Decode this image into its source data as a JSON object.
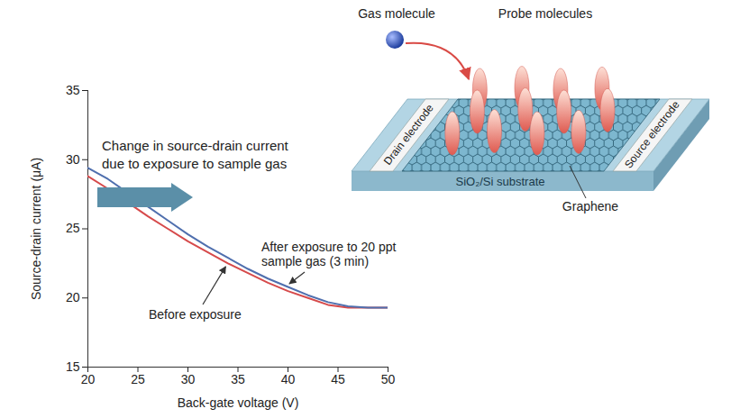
{
  "chart_data": {
    "type": "line",
    "x_label": "Back-gate voltage (V)",
    "y_label": "Source-drain current (μA)",
    "x": [
      20,
      22,
      24,
      26,
      28,
      30,
      32,
      34,
      36,
      38,
      40,
      42,
      44,
      46,
      48,
      50
    ],
    "series": [
      {
        "name": "Before exposure",
        "color": "#d64a4b",
        "values": [
          28.8,
          27.9,
          26.9,
          25.9,
          25.0,
          24.1,
          23.3,
          22.5,
          21.8,
          21.1,
          20.5,
          20.0,
          19.5,
          19.3,
          19.3,
          19.3
        ]
      },
      {
        "name": "After exposure to 20 ppt sample gas (3 min)",
        "color": "#4f6fae",
        "values": [
          29.4,
          28.6,
          27.6,
          26.6,
          25.6,
          24.6,
          23.7,
          22.9,
          22.1,
          21.4,
          20.8,
          20.2,
          19.7,
          19.4,
          19.3,
          19.3
        ]
      }
    ],
    "xlim": [
      20,
      50
    ],
    "xticks": [
      20,
      25,
      30,
      35,
      40,
      45,
      50
    ],
    "ylim": [
      15,
      35
    ],
    "yticks": [
      15,
      20,
      25,
      30,
      35
    ],
    "grid": false,
    "annotations": [
      "Change in source-drain current due to exposure to sample gas"
    ]
  },
  "diagram": {
    "gas_molecule": "Gas molecule",
    "probe_molecules": "Probe molecules",
    "drain_electrode": "Drain electrode",
    "source_electrode": "Source electrode",
    "substrate": "SiO₂/Si substrate",
    "graphene": "Graphene"
  }
}
